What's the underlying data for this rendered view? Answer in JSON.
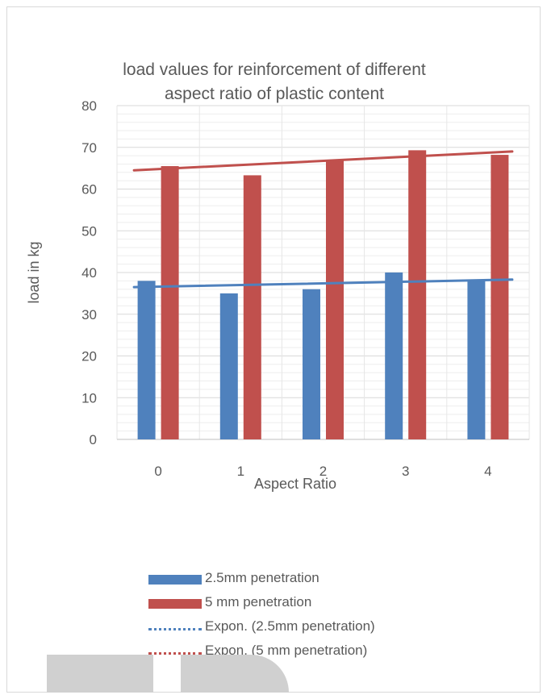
{
  "chart_data": {
    "type": "bar",
    "title": "load values for reinforcement of different aspect ratio of plastic content",
    "xlabel": "Aspect Ratio",
    "ylabel": "load in kg",
    "categories": [
      "0",
      "1",
      "2",
      "3",
      "4"
    ],
    "ylim": [
      0,
      80
    ],
    "yticks": [
      "0",
      "10",
      "20",
      "30",
      "40",
      "50",
      "60",
      "70",
      "80"
    ],
    "grid": true,
    "legend_position": "bottom",
    "series": [
      {
        "name": "2.5mm penetration",
        "values": [
          38,
          35,
          36,
          40,
          38
        ],
        "color": "#4f81bd"
      },
      {
        "name": "5 mm penetration",
        "values": [
          65.5,
          63.3,
          67,
          69.3,
          68.2
        ],
        "color": "#c0504d"
      }
    ],
    "trendlines": [
      {
        "name": "Expon. (2.5mm penetration)",
        "type": "exponential",
        "start": 36.5,
        "end": 38.3,
        "color": "#4f81bd"
      },
      {
        "name": "Expon. (5 mm penetration)",
        "type": "exponential",
        "start": 64.5,
        "end": 69.0,
        "color": "#c0504d"
      }
    ]
  }
}
